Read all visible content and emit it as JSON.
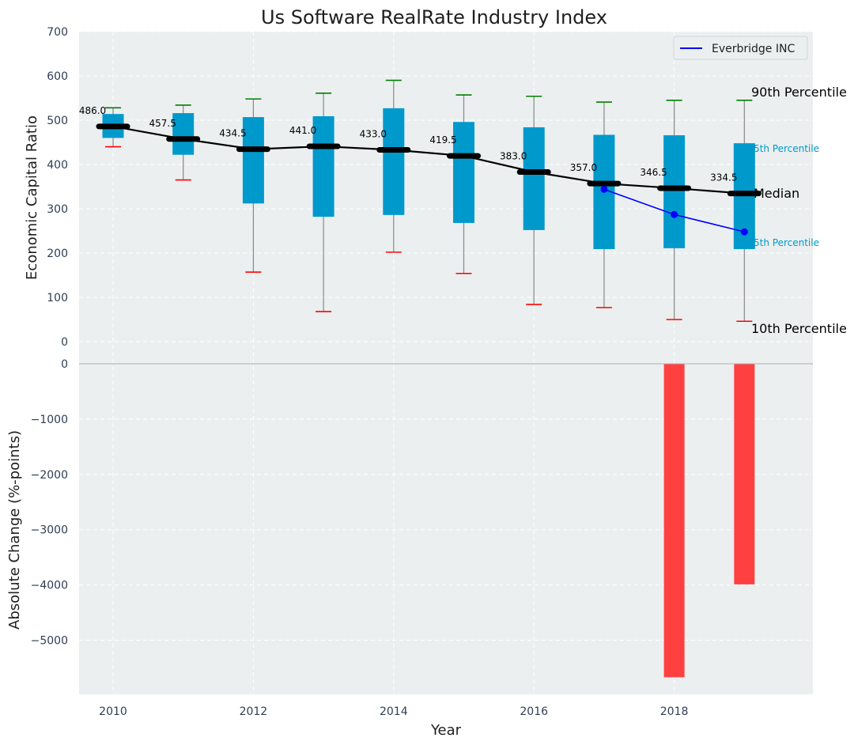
{
  "chart_data": [
    {
      "type": "box",
      "title": "Us Software RealRate Industry Index",
      "xlabel": "",
      "ylabel": "Economic Capital Ratio",
      "ylim": [
        0,
        700
      ],
      "yticks": [
        "0",
        "100",
        "200",
        "300",
        "400",
        "500",
        "600",
        "700"
      ],
      "grid": true,
      "legend_placement": "top-right",
      "colors": {
        "box": "#0099cc",
        "median_line": "#000000",
        "company": "#0000ff",
        "whisker_high": "#008000",
        "whisker_low": "#ff0000",
        "background": "#ebeff0"
      },
      "x": [
        2010,
        2011,
        2012,
        2013,
        2014,
        2015,
        2016,
        2017,
        2018,
        2019
      ],
      "p10": [
        440,
        365,
        157,
        68,
        202,
        154,
        84,
        77,
        50,
        46
      ],
      "p25": [
        460,
        422,
        312,
        282,
        286,
        268,
        252,
        209,
        211,
        209
      ],
      "median": [
        486.0,
        457.5,
        434.5,
        441.0,
        433.0,
        419.5,
        383.0,
        357.0,
        346.5,
        334.5
      ],
      "median_labels": [
        "486.0",
        "457.5",
        "434.5",
        "441.0",
        "433.0",
        "419.5",
        "383.0",
        "357.0",
        "346.5",
        "334.5"
      ],
      "p75": [
        514,
        516,
        507,
        509,
        527,
        496,
        484,
        467,
        466,
        448
      ],
      "p90": [
        528,
        534,
        548,
        561,
        590,
        557,
        554,
        541,
        545,
        545
      ],
      "series": [
        {
          "name": "Everbridge INC",
          "x": [
            2017,
            2018,
            2019
          ],
          "values": [
            344,
            287,
            248
          ]
        }
      ],
      "annotations": {
        "p90": "90th Percentile",
        "p75": "5th Percentile",
        "median": "Median",
        "p25": "5th Percentile",
        "p10": "10th Percentile"
      }
    },
    {
      "type": "bar",
      "xlabel": "Year",
      "ylabel": "Absolute Change (%-points)",
      "ylim": [
        -6000,
        0
      ],
      "yticks": [
        "0",
        "−1000",
        "−2000",
        "−3000",
        "−4000",
        "−5000"
      ],
      "xticks": [
        "2010",
        "2012",
        "2014",
        "2016",
        "2018"
      ],
      "grid": true,
      "colors": {
        "bar": "#ff4040"
      },
      "x": [
        2018,
        2019
      ],
      "values": [
        -5670,
        -3990
      ]
    }
  ]
}
